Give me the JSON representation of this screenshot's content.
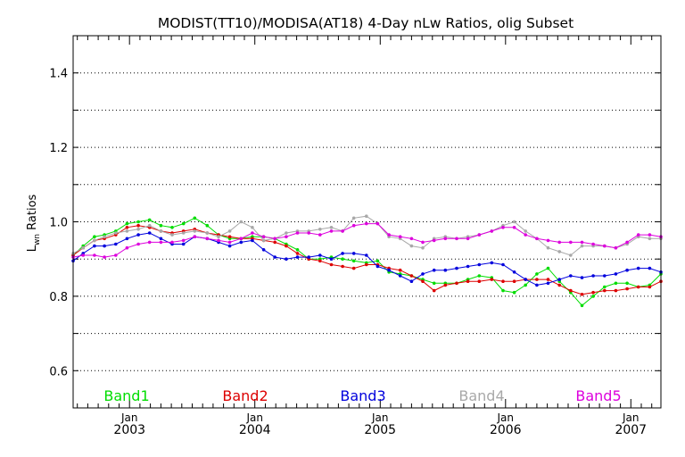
{
  "chart_data": {
    "type": "line",
    "title": "MODIST(TT10)/MODISA(AT18) 4-Day nLw Ratios, olig Subset",
    "ylabel": "Lwn Ratios",
    "ylabel_main": "L",
    "ylabel_sub": "wn",
    "ylabel_rest": " Ratios",
    "xlabel": "",
    "ylim": [
      0.5,
      1.5
    ],
    "xlim": [
      2002.55,
      2007.24
    ],
    "grid": "horizontal dotted",
    "yticks": [
      0.6,
      0.8,
      1.0,
      1.2,
      1.4
    ],
    "yticklabels": [
      "0.6",
      "0.8",
      "1.0",
      "1.2",
      "1.4"
    ],
    "xticks": [
      {
        "pos": 2003.0,
        "month": "Jan",
        "year": "2003"
      },
      {
        "pos": 2004.0,
        "month": "Jan",
        "year": "2004"
      },
      {
        "pos": 2005.0,
        "month": "Jan",
        "year": "2005"
      },
      {
        "pos": 2006.0,
        "month": "Jan",
        "year": "2006"
      },
      {
        "pos": 2007.0,
        "month": "Jan",
        "year": "2007"
      }
    ],
    "legend_placement": "bottom, inline",
    "x": [
      2002.55,
      2002.63,
      2002.72,
      2002.8,
      2002.89,
      2002.98,
      2003.07,
      2003.16,
      2003.25,
      2003.34,
      2003.43,
      2003.52,
      2003.62,
      2003.71,
      2003.8,
      2003.89,
      2003.98,
      2004.07,
      2004.16,
      2004.25,
      2004.34,
      2004.43,
      2004.52,
      2004.61,
      2004.7,
      2004.79,
      2004.89,
      2004.98,
      2005.07,
      2005.16,
      2005.25,
      2005.34,
      2005.43,
      2005.52,
      2005.61,
      2005.7,
      2005.79,
      2005.89,
      2005.98,
      2006.07,
      2006.16,
      2006.25,
      2006.34,
      2006.43,
      2006.52,
      2006.61,
      2006.7,
      2006.79,
      2006.88,
      2006.97,
      2007.06,
      2007.15,
      2007.24
    ],
    "series": [
      {
        "name": "Band1",
        "color": "#00dd00",
        "values": [
          0.91,
          0.935,
          0.96,
          0.965,
          0.975,
          0.995,
          1.0,
          1.005,
          0.99,
          0.985,
          0.995,
          1.01,
          0.99,
          0.965,
          0.955,
          0.955,
          0.96,
          0.96,
          0.955,
          0.94,
          0.925,
          0.9,
          0.9,
          0.905,
          0.9,
          0.895,
          0.89,
          0.895,
          0.865,
          0.86,
          0.855,
          0.845,
          0.835,
          0.835,
          0.835,
          0.845,
          0.855,
          0.85,
          0.815,
          0.81,
          0.83,
          0.86,
          0.875,
          0.84,
          0.81,
          0.775,
          0.8,
          0.825,
          0.835,
          0.835,
          0.825,
          0.83,
          0.86
        ]
      },
      {
        "name": "Band2",
        "color": "#dd0000",
        "values": [
          0.91,
          0.93,
          0.95,
          0.955,
          0.965,
          0.985,
          0.99,
          0.985,
          0.975,
          0.97,
          0.975,
          0.98,
          0.97,
          0.965,
          0.96,
          0.955,
          0.955,
          0.95,
          0.945,
          0.935,
          0.915,
          0.9,
          0.895,
          0.885,
          0.88,
          0.875,
          0.885,
          0.885,
          0.875,
          0.87,
          0.855,
          0.84,
          0.815,
          0.83,
          0.835,
          0.84,
          0.84,
          0.845,
          0.84,
          0.84,
          0.845,
          0.845,
          0.845,
          0.83,
          0.815,
          0.805,
          0.81,
          0.815,
          0.815,
          0.82,
          0.825,
          0.825,
          0.84
        ]
      },
      {
        "name": "Band3",
        "color": "#0000dd",
        "values": [
          0.895,
          0.915,
          0.935,
          0.935,
          0.94,
          0.955,
          0.965,
          0.97,
          0.955,
          0.94,
          0.94,
          0.96,
          0.955,
          0.945,
          0.935,
          0.945,
          0.95,
          0.925,
          0.905,
          0.9,
          0.905,
          0.905,
          0.91,
          0.9,
          0.915,
          0.915,
          0.91,
          0.88,
          0.87,
          0.855,
          0.84,
          0.86,
          0.87,
          0.87,
          0.875,
          0.88,
          0.885,
          0.89,
          0.885,
          0.865,
          0.845,
          0.83,
          0.835,
          0.845,
          0.855,
          0.85,
          0.855,
          0.855,
          0.86,
          0.87,
          0.875,
          0.875,
          0.865
        ]
      },
      {
        "name": "Band4",
        "color": "#a8a8a8",
        "values": [
          0.915,
          0.93,
          0.95,
          0.96,
          0.97,
          0.975,
          0.98,
          0.99,
          0.975,
          0.965,
          0.97,
          0.975,
          0.97,
          0.96,
          0.975,
          1.0,
          0.985,
          0.95,
          0.955,
          0.97,
          0.975,
          0.975,
          0.98,
          0.985,
          0.975,
          1.01,
          1.015,
          0.995,
          0.96,
          0.955,
          0.935,
          0.93,
          0.955,
          0.96,
          0.955,
          0.96,
          0.965,
          0.975,
          0.99,
          1.0,
          0.975,
          0.955,
          0.93,
          0.92,
          0.91,
          0.935,
          0.935,
          0.935,
          0.93,
          0.94,
          0.96,
          0.955,
          0.955
        ]
      },
      {
        "name": "Band5",
        "color": "#dd00dd",
        "values": [
          0.905,
          0.91,
          0.91,
          0.905,
          0.91,
          0.93,
          0.94,
          0.945,
          0.945,
          0.945,
          0.95,
          0.96,
          0.955,
          0.95,
          0.945,
          0.955,
          0.97,
          0.96,
          0.955,
          0.96,
          0.97,
          0.97,
          0.965,
          0.975,
          0.975,
          0.99,
          0.995,
          0.995,
          0.965,
          0.96,
          0.955,
          0.945,
          0.95,
          0.955,
          0.955,
          0.955,
          0.965,
          0.975,
          0.985,
          0.985,
          0.965,
          0.955,
          0.95,
          0.945,
          0.945,
          0.945,
          0.94,
          0.935,
          0.93,
          0.945,
          0.965,
          0.965,
          0.96
        ]
      }
    ]
  }
}
